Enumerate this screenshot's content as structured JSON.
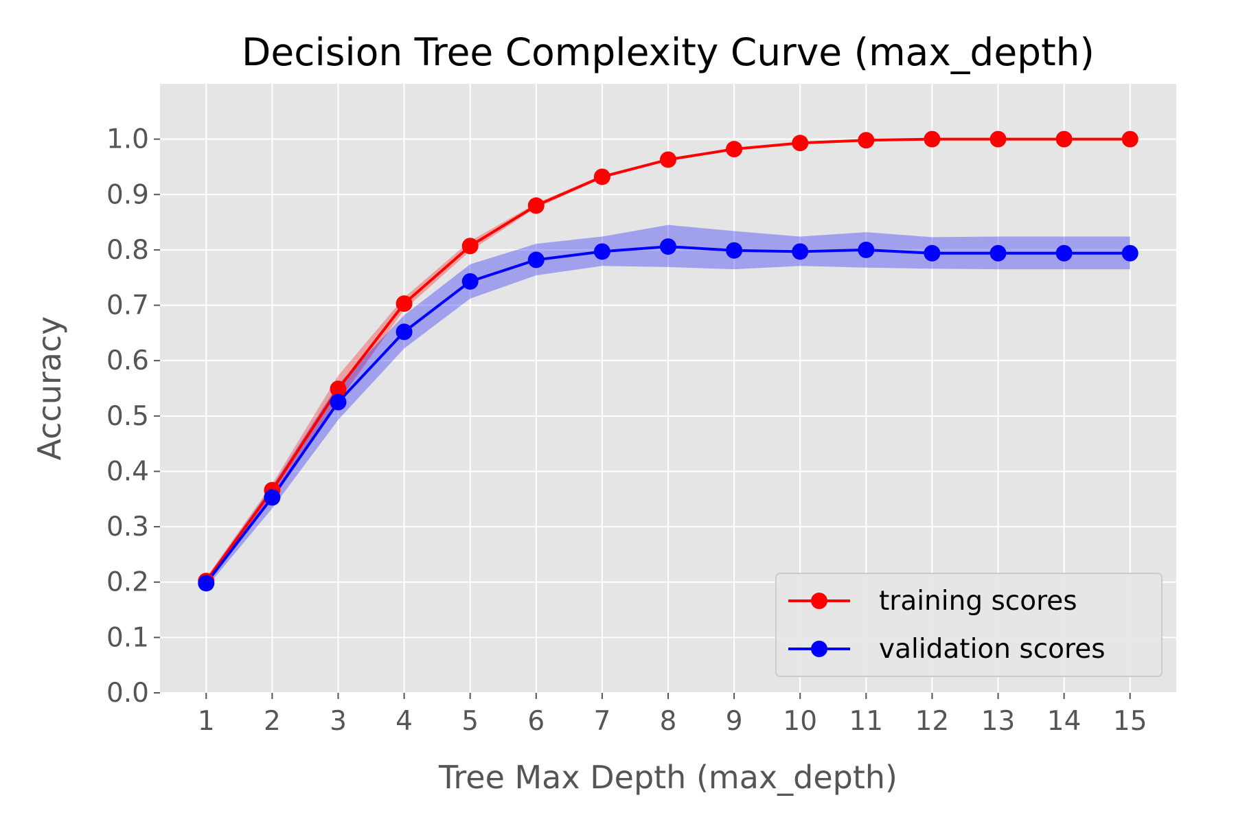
{
  "chart_data": {
    "type": "line",
    "title": "Decision Tree Complexity Curve (max_depth)",
    "xlabel": "Tree Max Depth (max_depth)",
    "ylabel": "Accuracy",
    "x": [
      1,
      2,
      3,
      4,
      5,
      6,
      7,
      8,
      9,
      10,
      11,
      12,
      13,
      14,
      15
    ],
    "xlim": [
      0.3,
      15.7
    ],
    "ylim": [
      0.0,
      1.1
    ],
    "yticks": [
      "0.0",
      "0.1",
      "0.2",
      "0.3",
      "0.4",
      "0.5",
      "0.6",
      "0.7",
      "0.8",
      "0.9",
      "1.0"
    ],
    "xticks": [
      "1",
      "2",
      "3",
      "4",
      "5",
      "6",
      "7",
      "8",
      "9",
      "10",
      "11",
      "12",
      "13",
      "14",
      "15"
    ],
    "grid": true,
    "legend_position": "lower-right",
    "series": [
      {
        "name": "training scores",
        "color": "#ff0000",
        "values": [
          0.202,
          0.366,
          0.549,
          0.703,
          0.807,
          0.88,
          0.932,
          0.963,
          0.982,
          0.993,
          0.998,
          1.0,
          1.0,
          1.0,
          1.0
        ],
        "band_low": [
          0.196,
          0.355,
          0.525,
          0.692,
          0.798,
          0.876,
          0.929,
          0.961,
          0.981,
          0.992,
          0.997,
          0.999,
          1.0,
          1.0,
          1.0
        ],
        "band_high": [
          0.208,
          0.377,
          0.573,
          0.714,
          0.816,
          0.884,
          0.935,
          0.965,
          0.983,
          0.994,
          0.999,
          1.0,
          1.0,
          1.0,
          1.0
        ]
      },
      {
        "name": "validation scores",
        "color": "#0000ff",
        "values": [
          0.198,
          0.353,
          0.525,
          0.652,
          0.743,
          0.782,
          0.797,
          0.806,
          0.799,
          0.797,
          0.8,
          0.794,
          0.794,
          0.794,
          0.794
        ],
        "band_low": [
          0.19,
          0.333,
          0.493,
          0.622,
          0.712,
          0.754,
          0.771,
          0.769,
          0.765,
          0.771,
          0.768,
          0.766,
          0.765,
          0.765,
          0.765
        ],
        "band_high": [
          0.206,
          0.373,
          0.557,
          0.682,
          0.774,
          0.811,
          0.824,
          0.845,
          0.834,
          0.824,
          0.832,
          0.823,
          0.824,
          0.824,
          0.824
        ]
      }
    ]
  }
}
